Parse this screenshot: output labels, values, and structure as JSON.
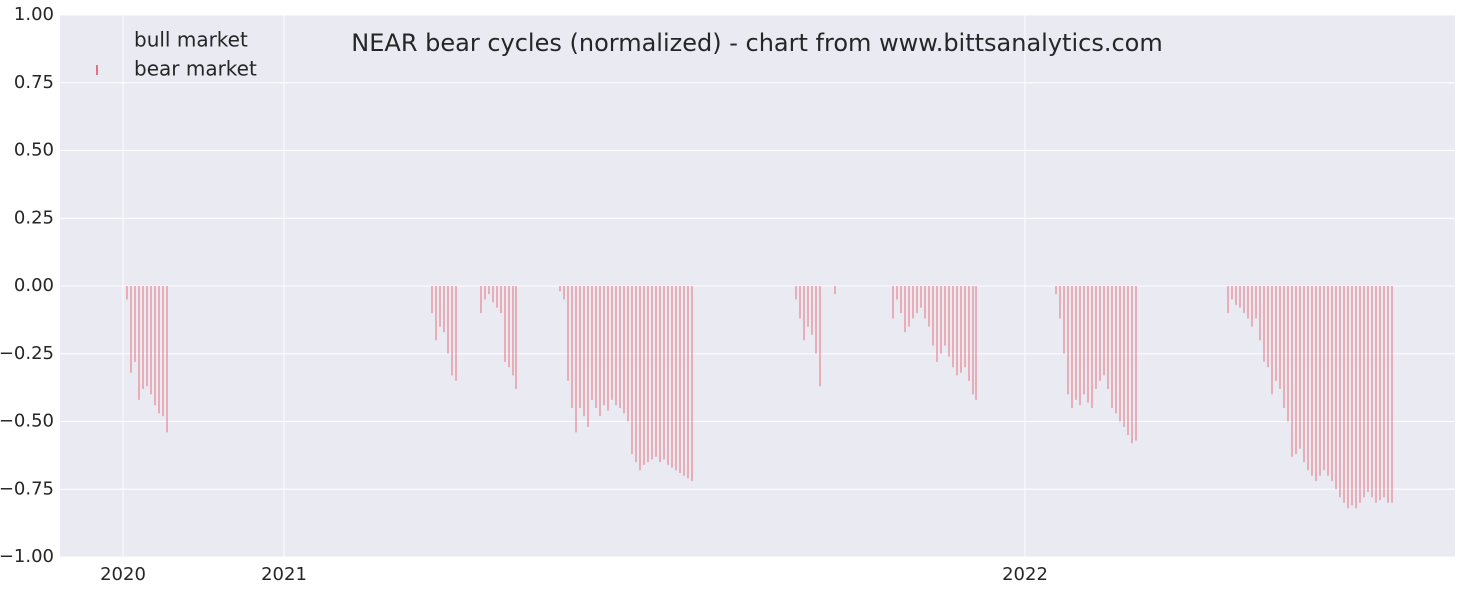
{
  "chart_data": {
    "type": "bar",
    "title": "NEAR bear cycles (normalized)  - chart from www.bittsanalytics.com",
    "legend_entries": [
      "bull market",
      "bear market"
    ],
    "legend": "upper left",
    "grid": true,
    "xlim": [
      -63,
      1332
    ],
    "xticks": [
      {
        "value": 0,
        "label": "2020"
      },
      {
        "value": 161,
        "label": "2021"
      },
      {
        "value": 902,
        "label": "2022"
      }
    ],
    "ylim": [
      -1,
      1
    ],
    "yticks": [
      {
        "value": -1,
        "label": "−1.00"
      },
      {
        "value": -0.75,
        "label": "−0.75"
      },
      {
        "value": -0.5,
        "label": "−0.50"
      },
      {
        "value": -0.25,
        "label": "−0.25"
      },
      {
        "value": 0,
        "label": "0.00"
      },
      {
        "value": 0.25,
        "label": "0.25"
      },
      {
        "value": 0.5,
        "label": "0.50"
      },
      {
        "value": 0.75,
        "label": "0.75"
      },
      {
        "value": 1,
        "label": "1.00"
      }
    ],
    "series": [
      {
        "name": "bear market",
        "color": "#e8707e",
        "x": [
          4,
          8,
          12,
          16,
          20,
          24,
          28,
          32,
          36,
          40,
          44,
          309,
          313,
          317,
          321,
          325,
          329,
          333,
          358,
          362,
          366,
          370,
          374,
          378,
          382,
          386,
          390,
          393,
          437,
          441,
          445,
          449,
          453,
          457,
          461,
          465,
          469,
          473,
          477,
          481,
          485,
          489,
          493,
          497,
          501,
          505,
          509,
          513,
          517,
          521,
          525,
          529,
          533,
          537,
          541,
          545,
          549,
          553,
          557,
          561,
          565,
          569,
          673,
          677,
          681,
          685,
          689,
          693,
          697,
          712,
          770,
          774,
          778,
          782,
          786,
          790,
          794,
          798,
          802,
          806,
          810,
          814,
          818,
          822,
          826,
          830,
          834,
          838,
          842,
          846,
          850,
          853,
          933,
          937,
          941,
          945,
          949,
          953,
          957,
          961,
          965,
          969,
          973,
          977,
          981,
          985,
          989,
          993,
          997,
          1001,
          1005,
          1009,
          1013,
          1105,
          1109,
          1113,
          1117,
          1121,
          1125,
          1129,
          1133,
          1137,
          1141,
          1145,
          1149,
          1153,
          1157,
          1161,
          1165,
          1169,
          1173,
          1177,
          1181,
          1185,
          1189,
          1193,
          1197,
          1201,
          1205,
          1209,
          1213,
          1217,
          1221,
          1225,
          1229,
          1233,
          1237,
          1241,
          1245,
          1249,
          1253,
          1257,
          1261,
          1265,
          1269
        ],
        "values": [
          -0.05,
          -0.32,
          -0.28,
          -0.42,
          -0.38,
          -0.37,
          -0.4,
          -0.44,
          -0.47,
          -0.48,
          -0.54,
          -0.1,
          -0.2,
          -0.15,
          -0.17,
          -0.25,
          -0.33,
          -0.35,
          -0.1,
          -0.05,
          -0.03,
          -0.06,
          -0.08,
          -0.1,
          -0.28,
          -0.3,
          -0.33,
          -0.38,
          -0.02,
          -0.05,
          -0.35,
          -0.45,
          -0.54,
          -0.45,
          -0.48,
          -0.52,
          -0.42,
          -0.45,
          -0.48,
          -0.44,
          -0.46,
          -0.42,
          -0.44,
          -0.45,
          -0.47,
          -0.5,
          -0.62,
          -0.65,
          -0.68,
          -0.66,
          -0.65,
          -0.64,
          -0.63,
          -0.65,
          -0.64,
          -0.66,
          -0.67,
          -0.68,
          -0.69,
          -0.7,
          -0.71,
          -0.72,
          -0.05,
          -0.12,
          -0.2,
          -0.15,
          -0.18,
          -0.25,
          -0.37,
          -0.03,
          -0.12,
          -0.05,
          -0.1,
          -0.17,
          -0.15,
          -0.12,
          -0.1,
          -0.08,
          -0.12,
          -0.15,
          -0.22,
          -0.28,
          -0.25,
          -0.22,
          -0.26,
          -0.3,
          -0.33,
          -0.32,
          -0.3,
          -0.35,
          -0.4,
          -0.42,
          -0.03,
          -0.12,
          -0.25,
          -0.4,
          -0.45,
          -0.42,
          -0.44,
          -0.4,
          -0.43,
          -0.45,
          -0.38,
          -0.35,
          -0.33,
          -0.38,
          -0.45,
          -0.47,
          -0.5,
          -0.52,
          -0.55,
          -0.58,
          -0.57,
          -0.1,
          -0.05,
          -0.07,
          -0.08,
          -0.1,
          -0.12,
          -0.15,
          -0.12,
          -0.2,
          -0.28,
          -0.3,
          -0.4,
          -0.35,
          -0.38,
          -0.45,
          -0.5,
          -0.63,
          -0.62,
          -0.6,
          -0.65,
          -0.68,
          -0.7,
          -0.72,
          -0.7,
          -0.68,
          -0.7,
          -0.72,
          -0.75,
          -0.78,
          -0.8,
          -0.82,
          -0.81,
          -0.82,
          -0.8,
          -0.78,
          -0.76,
          -0.78,
          -0.8,
          -0.79,
          -0.78,
          -0.8,
          -0.8
        ]
      }
    ]
  }
}
